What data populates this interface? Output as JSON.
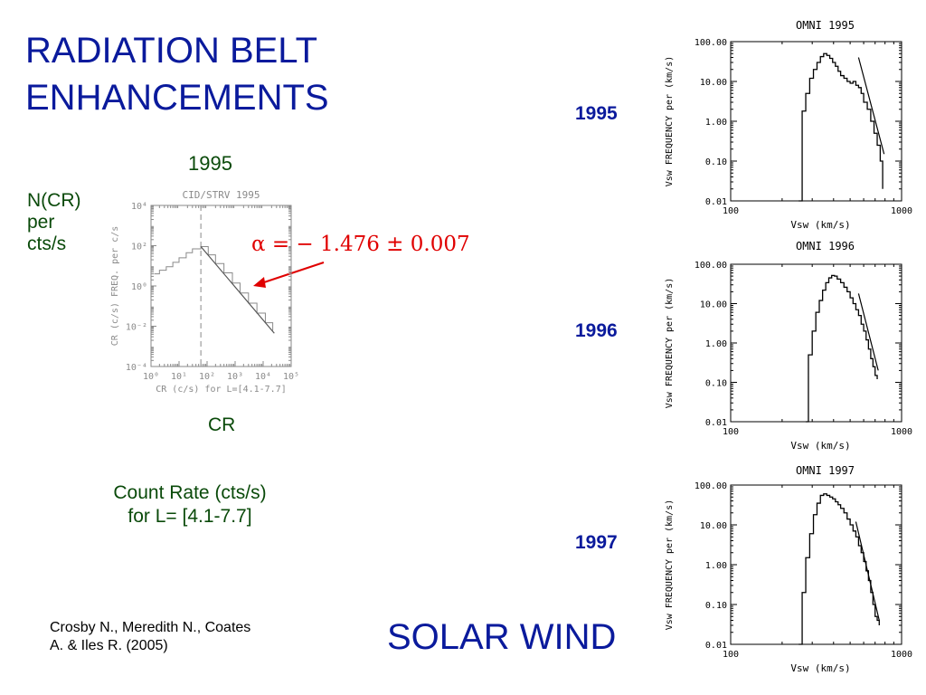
{
  "slide": {
    "title_line1": "RADIATION BELT",
    "title_line2": "ENHANCEMENTS",
    "year_label": "1995",
    "ncr_line1": "N(CR)",
    "ncr_line2": "per",
    "ncr_line3": "cts/s",
    "cr_label": "CR",
    "count_line1": "Count Rate (cts/s)",
    "count_line2": "for L= [4.1-7.7]",
    "citation_line1": "Crosby N., Meredith N., Coates",
    "citation_line2": "A. & Iles R. (2005)",
    "solar_wind": "SOLAR WIND",
    "alpha_text": "α = − 1.476 ± 0.007",
    "side_years": [
      "1995",
      "1996",
      "1997"
    ],
    "colors": {
      "title": "#0a1a9c",
      "green_text": "#0a4a0a",
      "annotation": "#e00000"
    },
    "arrow_icon": "arrow-icon"
  },
  "chart_data": [
    {
      "type": "line",
      "title": "CID/STRV 1995",
      "xlabel": "CR (c/s) for L=[4.1-7.7]",
      "ylabel": "CR (c/s) FREQ. per c/s",
      "xscale": "log",
      "yscale": "log",
      "xlim": [
        1,
        100000
      ],
      "ylim": [
        0.0001,
        10000
      ],
      "xticks": [
        "10⁰",
        "10¹",
        "10²",
        "10³",
        "10⁴",
        "10⁵"
      ],
      "yticks": [
        "10⁴",
        "10²",
        "10⁰",
        "10⁻²",
        "10⁻⁴"
      ],
      "vline_x": 60,
      "series": [
        {
          "x": [
            1.3,
            2,
            3.5,
            6,
            10,
            18,
            30,
            60,
            110,
            200,
            400,
            800,
            1500,
            3000,
            6000,
            12000,
            22000
          ],
          "y": [
            4,
            6,
            9,
            15,
            25,
            45,
            70,
            90,
            35,
            13,
            4.5,
            1.4,
            0.45,
            0.14,
            0.045,
            0.015,
            0.006
          ]
        }
      ],
      "fit": {
        "x": [
          60,
          25000
        ],
        "y": [
          90,
          0.0045
        ]
      }
    },
    {
      "type": "line",
      "title": "OMNI 1995",
      "xlabel": "Vsw (km/s)",
      "ylabel": "Vsw FREQUENCY per (km/s)",
      "xscale": "log",
      "yscale": "log",
      "xlim": [
        100,
        1000
      ],
      "ylim": [
        0.01,
        100
      ],
      "xticks": [
        "100",
        "1000"
      ],
      "yticks": [
        "100.00",
        "10.00",
        "1.00",
        "0.10",
        "0.01"
      ],
      "series": [
        {
          "x": [
            250,
            262,
            275,
            290,
            305,
            320,
            335,
            350,
            365,
            380,
            395,
            410,
            425,
            440,
            460,
            480,
            500,
            520,
            540,
            560,
            580,
            600,
            630,
            660,
            690,
            720,
            750,
            775
          ],
          "y": [
            0.01,
            1.8,
            5,
            12,
            20,
            30,
            42,
            50,
            45,
            38,
            30,
            24,
            18,
            14,
            12,
            10,
            9,
            10,
            8,
            7,
            5,
            3,
            2,
            1,
            0.5,
            0.25,
            0.1,
            0.02
          ]
        }
      ],
      "fit": {
        "x": [
          560,
          790
        ],
        "y": [
          40,
          0.15
        ]
      }
    },
    {
      "type": "line",
      "title": "OMNI 1996",
      "xlabel": "Vsw (km/s)",
      "ylabel": "Vsw FREQUENCY per (km/s)",
      "xscale": "log",
      "yscale": "log",
      "xlim": [
        100,
        1000
      ],
      "ylim": [
        0.01,
        100
      ],
      "xticks": [
        "100",
        "1000"
      ],
      "yticks": [
        "100.00",
        "10.00",
        "1.00",
        "0.10",
        "0.01"
      ],
      "series": [
        {
          "x": [
            275,
            285,
            300,
            315,
            330,
            345,
            360,
            375,
            390,
            405,
            420,
            440,
            460,
            480,
            500,
            520,
            540,
            560,
            580,
            600,
            620,
            640,
            660,
            680,
            700,
            720
          ],
          "y": [
            0.01,
            0.5,
            2,
            6,
            12,
            22,
            34,
            45,
            52,
            50,
            42,
            34,
            26,
            20,
            14,
            10,
            7,
            5,
            3,
            2,
            1.2,
            0.7,
            0.4,
            0.25,
            0.15,
            0.12
          ]
        }
      ],
      "fit": {
        "x": [
          560,
          730
        ],
        "y": [
          18,
          0.2
        ]
      }
    },
    {
      "type": "line",
      "title": "OMNI 1997",
      "xlabel": "Vsw (km/s)",
      "ylabel": "Vsw FREQUENCY per (km/s)",
      "xscale": "log",
      "yscale": "log",
      "xlim": [
        100,
        1000
      ],
      "ylim": [
        0.01,
        100
      ],
      "xticks": [
        "100",
        "1000"
      ],
      "yticks": [
        "100.00",
        "10.00",
        "1.00",
        "0.10",
        "0.01"
      ],
      "series": [
        {
          "x": [
            250,
            262,
            275,
            290,
            305,
            320,
            335,
            350,
            365,
            380,
            395,
            410,
            425,
            440,
            460,
            480,
            500,
            520,
            540,
            560,
            580,
            600,
            620,
            640,
            660,
            680,
            700,
            720,
            740
          ],
          "y": [
            0.01,
            0.2,
            1.5,
            6,
            18,
            35,
            55,
            60,
            55,
            50,
            45,
            38,
            32,
            26,
            20,
            14,
            10,
            7,
            5,
            3,
            2,
            1.2,
            0.7,
            0.4,
            0.2,
            0.1,
            0.05,
            0.04,
            0.03
          ]
        }
      ],
      "fit": {
        "x": [
          540,
          740
        ],
        "y": [
          12,
          0.04
        ]
      }
    }
  ]
}
